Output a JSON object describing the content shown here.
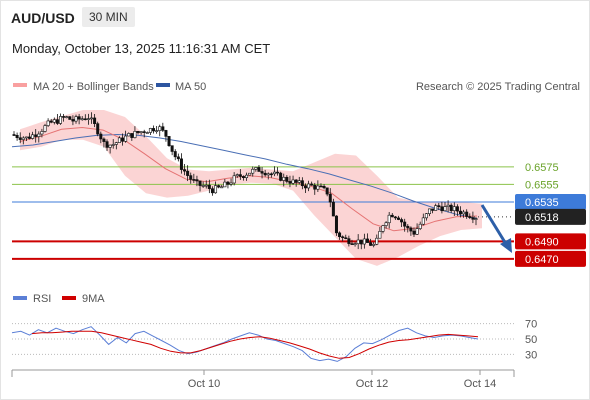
{
  "header": {
    "symbol": "AUD/USD",
    "timeframe": "30 MIN",
    "datetime": "Monday, October 13, 2025 11:16:31 AM CET"
  },
  "legend": {
    "bollinger_label": "MA 20 + Bollinger Bands",
    "ma50_label": "MA 50",
    "research": "Research © 2025 Trading Central",
    "rsi_label": "RSI",
    "rsi_ma_label": "9MA"
  },
  "colors": {
    "bands": "#f9c6c6",
    "ma20": "#e57373",
    "ma50": "#4a6fb5",
    "support": "#cc0000",
    "pivot": "#3d7bd9",
    "resistance": "#8bc34a",
    "rsi": "#5b7fd6",
    "rsi_ma": "#d00000",
    "candle": "#111111"
  },
  "chart_data": {
    "type": "candlestick",
    "x_ticks": [
      "Oct 10",
      "Oct 12",
      "Oct 14"
    ],
    "price_levels": [
      {
        "value": "0.6575",
        "kind": "resistance"
      },
      {
        "value": "0.6555",
        "kind": "resistance"
      },
      {
        "value": "0.6535",
        "kind": "pivot"
      },
      {
        "value": "0.6518",
        "kind": "last"
      },
      {
        "value": "0.6490",
        "kind": "support"
      },
      {
        "value": "0.6470",
        "kind": "support"
      }
    ],
    "price_range": [
      0.6455,
      0.664
    ],
    "close_path": [
      0.6612,
      0.661,
      0.6608,
      0.6612,
      0.6618,
      0.6625,
      0.6628,
      0.6632,
      0.6628,
      0.663,
      0.6632,
      0.662,
      0.6602,
      0.66,
      0.6605,
      0.661,
      0.6613,
      0.6616,
      0.6618,
      0.6621,
      0.6611,
      0.659,
      0.6575,
      0.6563,
      0.6555,
      0.6553,
      0.6549,
      0.6551,
      0.6556,
      0.6563,
      0.6566,
      0.657,
      0.6572,
      0.6569,
      0.6566,
      0.6562,
      0.6559,
      0.6556,
      0.6554,
      0.6553,
      0.655,
      0.6545,
      0.65,
      0.6492,
      0.6491,
      0.649,
      0.6488,
      0.6485,
      0.651,
      0.6522,
      0.6518,
      0.6505,
      0.65,
      0.6512,
      0.6525,
      0.653,
      0.6528,
      0.6527,
      0.6524,
      0.6521,
      0.6518
    ],
    "ma50_path": [
      0.6598,
      0.66,
      0.6604,
      0.6608,
      0.6611,
      0.6612,
      0.6611,
      0.6608,
      0.6604,
      0.6599,
      0.6594,
      0.6589,
      0.6584,
      0.6578,
      0.6573,
      0.6567,
      0.656,
      0.6553,
      0.6545,
      0.6536,
      0.6528,
      0.6521,
      0.6516
    ],
    "ma20_path": [
      0.6604,
      0.661,
      0.6618,
      0.662,
      0.6617,
      0.6606,
      0.659,
      0.6573,
      0.6561,
      0.6558,
      0.6562,
      0.6565,
      0.6563,
      0.6558,
      0.6553,
      0.6545,
      0.6527,
      0.651,
      0.6502,
      0.6505,
      0.6513,
      0.6518,
      0.6519
    ],
    "band_upper_path": [
      0.6618,
      0.6626,
      0.6633,
      0.664,
      0.664,
      0.6632,
      0.661,
      0.6585,
      0.6572,
      0.657,
      0.6572,
      0.6574,
      0.6572,
      0.657,
      0.658,
      0.659,
      0.6588,
      0.6565,
      0.654,
      0.6535,
      0.6536,
      0.6535,
      0.6533
    ],
    "band_lower_path": [
      0.6594,
      0.6598,
      0.6606,
      0.6606,
      0.6598,
      0.6565,
      0.6545,
      0.654,
      0.6542,
      0.6548,
      0.6555,
      0.6557,
      0.6556,
      0.6548,
      0.652,
      0.6495,
      0.647,
      0.6462,
      0.6472,
      0.6485,
      0.6496,
      0.6503,
      0.6505
    ],
    "rsi_range": [
      15,
      85
    ],
    "rsi_ticks": [
      "70",
      "50",
      "30"
    ],
    "rsi_path": [
      58,
      60,
      55,
      62,
      58,
      64,
      60,
      57,
      62,
      66,
      55,
      43,
      52,
      45,
      57,
      60,
      54,
      48,
      42,
      35,
      31,
      33,
      37,
      41,
      45,
      50,
      54,
      58,
      55,
      50,
      48,
      44,
      40,
      35,
      25,
      22,
      24,
      21,
      27,
      38,
      45,
      44,
      49,
      55,
      61,
      64,
      58,
      54,
      52,
      54,
      55,
      54,
      52,
      50
    ],
    "rsi_ma_path": [
      57,
      58,
      58,
      59,
      60,
      60,
      60,
      58,
      55,
      52,
      49,
      46,
      43,
      38,
      34,
      32,
      32,
      35,
      39,
      43,
      47,
      50,
      52,
      53,
      51,
      48,
      45,
      41,
      37,
      32,
      28,
      25,
      26,
      31,
      37,
      42,
      46,
      48,
      49,
      51,
      53,
      55,
      56,
      55,
      54,
      53
    ]
  }
}
